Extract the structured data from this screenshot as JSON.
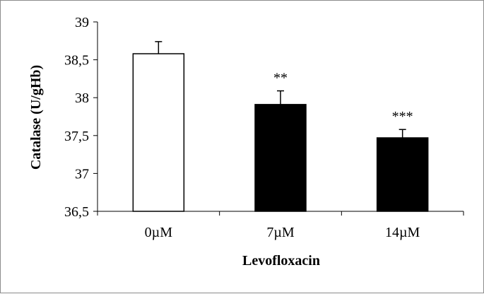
{
  "chart_data": {
    "type": "bar",
    "title": "",
    "xlabel": "Levofloxacin",
    "ylabel": "Catalase (U/gHb)",
    "categories": [
      "0µM",
      "7µM",
      "14µM"
    ],
    "values": [
      38.58,
      37.91,
      37.47
    ],
    "error_upper": [
      0.16,
      0.18,
      0.11
    ],
    "annotations": [
      "",
      "**",
      "***"
    ],
    "bar_colors": [
      "#ffffff",
      "#000000",
      "#000000"
    ],
    "ylim": [
      36.5,
      39
    ],
    "yticks": [
      36.5,
      37,
      37.5,
      38,
      38.5,
      39
    ],
    "ytick_labels": [
      "36,5",
      "37",
      "37,5",
      "38",
      "38,5",
      "39"
    ],
    "grid": false,
    "legend": "none"
  }
}
